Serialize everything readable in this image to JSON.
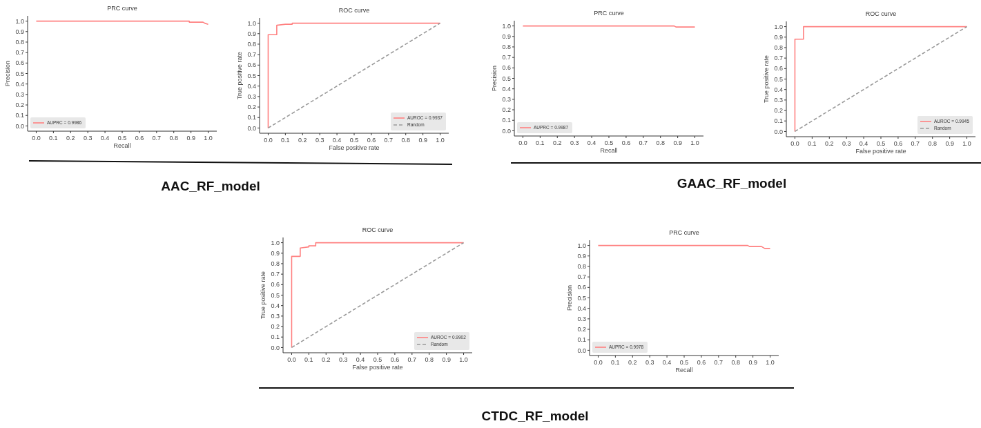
{
  "chart_data": [
    {
      "type": "line",
      "title": "PRC curve",
      "xlabel": "Recall",
      "ylabel": "Precision",
      "annotations": [
        "AAC_RF_model"
      ],
      "xlim": [
        -0.05,
        1.05
      ],
      "ylim": [
        -0.05,
        1.05
      ],
      "xticks": [
        {
          "value": 0,
          "label": "0.0"
        },
        {
          "value": 0.1,
          "label": "0.1"
        },
        {
          "value": 0.2,
          "label": "0.2"
        },
        {
          "value": 0.3,
          "label": "0.3"
        },
        {
          "value": 0.4,
          "label": "0.4"
        },
        {
          "value": 0.5,
          "label": "0.5"
        },
        {
          "value": 0.6,
          "label": "0.6"
        },
        {
          "value": 0.7,
          "label": "0.7"
        },
        {
          "value": 0.8,
          "label": "0.8"
        },
        {
          "value": 0.9,
          "label": "0.9"
        },
        {
          "value": 1,
          "label": "1.0"
        }
      ],
      "yticks": [
        {
          "value": 0,
          "label": "0.0"
        },
        {
          "value": 0.1,
          "label": "0.1"
        },
        {
          "value": 0.2,
          "label": "0.2"
        },
        {
          "value": 0.3,
          "label": "0.3"
        },
        {
          "value": 0.4,
          "label": "0.4"
        },
        {
          "value": 0.5,
          "label": "0.5"
        },
        {
          "value": 0.6,
          "label": "0.6"
        },
        {
          "value": 0.7,
          "label": "0.7"
        },
        {
          "value": 0.8,
          "label": "0.8"
        },
        {
          "value": 0.9,
          "label": "0.9"
        },
        {
          "value": 1,
          "label": "1.0"
        }
      ],
      "legend": "bottom left",
      "grid": false,
      "series": [
        {
          "name": "AUPRC = 0.9986",
          "color": "#ff8080",
          "x": [
            0,
            0.89,
            0.89,
            0.97,
            0.98,
            1.0
          ],
          "values": [
            1,
            1,
            0.99,
            0.99,
            0.98,
            0.97
          ]
        }
      ]
    },
    {
      "type": "line",
      "title": "ROC curve",
      "xlabel": "False positive rate",
      "ylabel": "True positive rate",
      "xlim": [
        -0.05,
        1.05
      ],
      "ylim": [
        -0.05,
        1.05
      ],
      "xticks": [
        {
          "value": 0,
          "label": "0.0"
        },
        {
          "value": 0.1,
          "label": "0.1"
        },
        {
          "value": 0.2,
          "label": "0.2"
        },
        {
          "value": 0.3,
          "label": "0.3"
        },
        {
          "value": 0.4,
          "label": "0.4"
        },
        {
          "value": 0.5,
          "label": "0.5"
        },
        {
          "value": 0.6,
          "label": "0.6"
        },
        {
          "value": 0.7,
          "label": "0.7"
        },
        {
          "value": 0.8,
          "label": "0.8"
        },
        {
          "value": 0.9,
          "label": "0.9"
        },
        {
          "value": 1,
          "label": "1.0"
        }
      ],
      "yticks": [
        {
          "value": 0,
          "label": "0.0"
        },
        {
          "value": 0.1,
          "label": "0.1"
        },
        {
          "value": 0.2,
          "label": "0.2"
        },
        {
          "value": 0.3,
          "label": "0.3"
        },
        {
          "value": 0.4,
          "label": "0.4"
        },
        {
          "value": 0.5,
          "label": "0.5"
        },
        {
          "value": 0.6,
          "label": "0.6"
        },
        {
          "value": 0.7,
          "label": "0.7"
        },
        {
          "value": 0.8,
          "label": "0.8"
        },
        {
          "value": 0.9,
          "label": "0.9"
        },
        {
          "value": 1,
          "label": "1.0"
        }
      ],
      "legend": "bottom right",
      "grid": false,
      "series": [
        {
          "name": "AUROC = 0.9937",
          "color": "#ff8080",
          "x": [
            0,
            0,
            0.05,
            0.05,
            0.1,
            0.14,
            0.14,
            1
          ],
          "values": [
            0,
            0.89,
            0.89,
            0.98,
            0.99,
            0.99,
            1,
            1
          ]
        },
        {
          "name": "Random",
          "color": "#999999",
          "line_style": "dashed",
          "x": [
            0,
            1
          ],
          "values": [
            0,
            1
          ]
        }
      ]
    },
    {
      "type": "line",
      "title": "PRC curve",
      "xlabel": "Recall",
      "ylabel": "Precision",
      "annotations": [
        "GAAC_RF_model"
      ],
      "xlim": [
        -0.05,
        1.05
      ],
      "ylim": [
        -0.05,
        1.05
      ],
      "xticks": [
        {
          "value": 0,
          "label": "0.0"
        },
        {
          "value": 0.1,
          "label": "0.1"
        },
        {
          "value": 0.2,
          "label": "0.2"
        },
        {
          "value": 0.3,
          "label": "0.3"
        },
        {
          "value": 0.4,
          "label": "0.4"
        },
        {
          "value": 0.5,
          "label": "0.5"
        },
        {
          "value": 0.6,
          "label": "0.6"
        },
        {
          "value": 0.7,
          "label": "0.7"
        },
        {
          "value": 0.8,
          "label": "0.8"
        },
        {
          "value": 0.9,
          "label": "0.9"
        },
        {
          "value": 1,
          "label": "1.0"
        }
      ],
      "yticks": [
        {
          "value": 0,
          "label": "0.0"
        },
        {
          "value": 0.1,
          "label": "0.1"
        },
        {
          "value": 0.2,
          "label": "0.2"
        },
        {
          "value": 0.3,
          "label": "0.3"
        },
        {
          "value": 0.4,
          "label": "0.4"
        },
        {
          "value": 0.5,
          "label": "0.5"
        },
        {
          "value": 0.6,
          "label": "0.6"
        },
        {
          "value": 0.7,
          "label": "0.7"
        },
        {
          "value": 0.8,
          "label": "0.8"
        },
        {
          "value": 0.9,
          "label": "0.9"
        },
        {
          "value": 1,
          "label": "1.0"
        }
      ],
      "legend": "bottom left",
      "grid": false,
      "series": [
        {
          "name": "AUPRC = 0.9987",
          "color": "#ff8080",
          "x": [
            0,
            0.88,
            0.89,
            1.0
          ],
          "values": [
            1,
            1,
            0.99,
            0.99
          ]
        }
      ]
    },
    {
      "type": "line",
      "title": "ROC curve",
      "xlabel": "False positive rate",
      "ylabel": "True positive rate",
      "xlim": [
        -0.05,
        1.05
      ],
      "ylim": [
        -0.05,
        1.05
      ],
      "xticks": [
        {
          "value": 0,
          "label": "0.0"
        },
        {
          "value": 0.1,
          "label": "0.1"
        },
        {
          "value": 0.2,
          "label": "0.2"
        },
        {
          "value": 0.3,
          "label": "0.3"
        },
        {
          "value": 0.4,
          "label": "0.4"
        },
        {
          "value": 0.5,
          "label": "0.5"
        },
        {
          "value": 0.6,
          "label": "0.6"
        },
        {
          "value": 0.7,
          "label": "0.7"
        },
        {
          "value": 0.8,
          "label": "0.8"
        },
        {
          "value": 0.9,
          "label": "0.9"
        },
        {
          "value": 1,
          "label": "1.0"
        }
      ],
      "yticks": [
        {
          "value": 0,
          "label": "0.0"
        },
        {
          "value": 0.1,
          "label": "0.1"
        },
        {
          "value": 0.2,
          "label": "0.2"
        },
        {
          "value": 0.3,
          "label": "0.3"
        },
        {
          "value": 0.4,
          "label": "0.4"
        },
        {
          "value": 0.5,
          "label": "0.5"
        },
        {
          "value": 0.6,
          "label": "0.6"
        },
        {
          "value": 0.7,
          "label": "0.7"
        },
        {
          "value": 0.8,
          "label": "0.8"
        },
        {
          "value": 0.9,
          "label": "0.9"
        },
        {
          "value": 1,
          "label": "1.0"
        }
      ],
      "legend": "bottom right",
      "grid": false,
      "series": [
        {
          "name": "AUROC = 0.9945",
          "color": "#ff8080",
          "x": [
            0,
            0,
            0.05,
            0.05,
            1
          ],
          "values": [
            0,
            0.88,
            0.88,
            1,
            1
          ]
        },
        {
          "name": "Random",
          "color": "#999999",
          "line_style": "dashed",
          "x": [
            0,
            1
          ],
          "values": [
            0,
            1
          ]
        }
      ]
    },
    {
      "type": "line",
      "title": "ROC curve",
      "xlabel": "False positive rate",
      "ylabel": "True positive rate",
      "annotations": [
        "CTDC_RF_model"
      ],
      "xlim": [
        -0.05,
        1.05
      ],
      "ylim": [
        -0.05,
        1.05
      ],
      "xticks": [
        {
          "value": 0,
          "label": "0.0"
        },
        {
          "value": 0.1,
          "label": "0.1"
        },
        {
          "value": 0.2,
          "label": "0.2"
        },
        {
          "value": 0.3,
          "label": "0.3"
        },
        {
          "value": 0.4,
          "label": "0.4"
        },
        {
          "value": 0.5,
          "label": "0.5"
        },
        {
          "value": 0.6,
          "label": "0.6"
        },
        {
          "value": 0.7,
          "label": "0.7"
        },
        {
          "value": 0.8,
          "label": "0.8"
        },
        {
          "value": 0.9,
          "label": "0.9"
        },
        {
          "value": 1,
          "label": "1.0"
        }
      ],
      "yticks": [
        {
          "value": 0,
          "label": "0.0"
        },
        {
          "value": 0.1,
          "label": "0.1"
        },
        {
          "value": 0.2,
          "label": "0.2"
        },
        {
          "value": 0.3,
          "label": "0.3"
        },
        {
          "value": 0.4,
          "label": "0.4"
        },
        {
          "value": 0.5,
          "label": "0.5"
        },
        {
          "value": 0.6,
          "label": "0.6"
        },
        {
          "value": 0.7,
          "label": "0.7"
        },
        {
          "value": 0.8,
          "label": "0.8"
        },
        {
          "value": 0.9,
          "label": "0.9"
        },
        {
          "value": 1,
          "label": "1.0"
        }
      ],
      "legend": "bottom right",
      "grid": false,
      "series": [
        {
          "name": "AUROC = 0.9902",
          "color": "#ff8080",
          "x": [
            0,
            0,
            0.05,
            0.05,
            0.1,
            0.1,
            0.14,
            0.14,
            1
          ],
          "values": [
            0,
            0.87,
            0.87,
            0.95,
            0.96,
            0.97,
            0.97,
            1,
            1
          ]
        },
        {
          "name": "Random",
          "color": "#999999",
          "line_style": "dashed",
          "x": [
            0,
            1
          ],
          "values": [
            0,
            1
          ]
        }
      ]
    },
    {
      "type": "line",
      "title": "PRC curve",
      "xlabel": "Recall",
      "ylabel": "Precision",
      "xlim": [
        -0.05,
        1.05
      ],
      "ylim": [
        -0.05,
        1.05
      ],
      "xticks": [
        {
          "value": 0,
          "label": "0.0"
        },
        {
          "value": 0.1,
          "label": "0.1"
        },
        {
          "value": 0.2,
          "label": "0.2"
        },
        {
          "value": 0.3,
          "label": "0.3"
        },
        {
          "value": 0.4,
          "label": "0.4"
        },
        {
          "value": 0.5,
          "label": "0.5"
        },
        {
          "value": 0.6,
          "label": "0.6"
        },
        {
          "value": 0.7,
          "label": "0.7"
        },
        {
          "value": 0.8,
          "label": "0.8"
        },
        {
          "value": 0.9,
          "label": "0.9"
        },
        {
          "value": 1,
          "label": "1.0"
        }
      ],
      "yticks": [
        {
          "value": 0,
          "label": "0.0"
        },
        {
          "value": 0.1,
          "label": "0.1"
        },
        {
          "value": 0.2,
          "label": "0.2"
        },
        {
          "value": 0.3,
          "label": "0.3"
        },
        {
          "value": 0.4,
          "label": "0.4"
        },
        {
          "value": 0.5,
          "label": "0.5"
        },
        {
          "value": 0.6,
          "label": "0.6"
        },
        {
          "value": 0.7,
          "label": "0.7"
        },
        {
          "value": 0.8,
          "label": "0.8"
        },
        {
          "value": 0.9,
          "label": "0.9"
        },
        {
          "value": 1,
          "label": "1.0"
        }
      ],
      "legend": "bottom left",
      "grid": false,
      "series": [
        {
          "name": "AUPRC = 0.9978",
          "color": "#ff8080",
          "x": [
            0,
            0.87,
            0.88,
            0.95,
            0.97,
            1.0
          ],
          "values": [
            1,
            1,
            0.99,
            0.99,
            0.97,
            0.97
          ]
        }
      ]
    }
  ]
}
